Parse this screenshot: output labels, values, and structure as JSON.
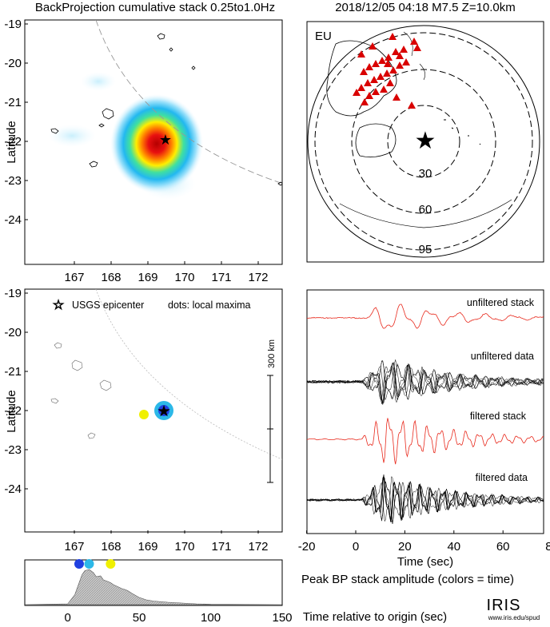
{
  "header": {
    "left_title": "BackProjection cumulative stack 0.25to1.0Hz",
    "right_title": "2018/12/05 04:18  M7.5  Z=10.0km"
  },
  "colors": {
    "stack_red": "#e8291c",
    "data_black": "#000000",
    "epicenter_blue": "#1b2bd6",
    "station_red": "#d90000",
    "dot_blue": "#2040e0",
    "dot_cyan": "#2cb8e8",
    "dot_yellow": "#f0f000"
  },
  "map_top": {
    "ylabel": "Latitude",
    "y_ticks": [
      "-19",
      "-20",
      "-21",
      "-22",
      "-23",
      "-24"
    ],
    "x_ticks": [
      "167",
      "168",
      "169",
      "170",
      "171",
      "172"
    ]
  },
  "globe": {
    "region_label": "EU",
    "ring_labels": [
      "30",
      "60",
      "95"
    ]
  },
  "map_bottom": {
    "ylabel": "Latitude",
    "y_ticks": [
      "-19",
      "-20",
      "-21",
      "-22",
      "-23",
      "-24"
    ],
    "x_ticks": [
      "167",
      "168",
      "169",
      "170",
      "171",
      "172"
    ],
    "legend_star": "USGS epicenter",
    "legend_dots": "dots: local maxima",
    "scale_label": "300 km"
  },
  "traces": {
    "labels": [
      "unfiltered stack",
      "unfiltered data",
      "filtered stack",
      "filtered data"
    ],
    "x_ticks": [
      "-20",
      "0",
      "20",
      "40",
      "60",
      "80"
    ],
    "xlabel": "Time (sec)"
  },
  "peak": {
    "x_ticks": [
      "0",
      "50",
      "100",
      "150"
    ],
    "title": "Peak BP stack amplitude (colors = time)",
    "xlabel": "Time relative to origin (sec)"
  },
  "logo": {
    "name": "IRIS",
    "url": "www.iris.edu/spud"
  },
  "chart_data": [
    {
      "type": "heatmap",
      "title": "BackProjection cumulative stack 0.25to1.0Hz",
      "xlabel": "",
      "ylabel": "Latitude",
      "xlim": [
        166.3,
        172.6
      ],
      "ylim": [
        -25.0,
        -18.9
      ],
      "peak": {
        "lon": 169.4,
        "lat": -21.97
      },
      "epicenter": {
        "lon": 169.43,
        "lat": -21.95
      }
    },
    {
      "type": "scatter",
      "title": "2018/12/05 04:18  M7.5  Z=10.0km",
      "region": "EU",
      "distance_rings_deg": [
        30,
        60,
        95
      ]
    },
    {
      "type": "scatter",
      "ylabel": "Latitude",
      "xlim": [
        166.3,
        172.6
      ],
      "ylim": [
        -25.0,
        -18.9
      ],
      "epicenter": {
        "lon": 169.43,
        "lat": -21.95
      },
      "local_maxima": [
        {
          "lon": 169.43,
          "lat": -21.97,
          "color": "cyan"
        },
        {
          "lon": 169.43,
          "lat": -21.97,
          "color": "blue"
        },
        {
          "lon": 168.93,
          "lat": -22.05,
          "color": "yellow"
        }
      ]
    },
    {
      "type": "line",
      "xlabel": "Time (sec)",
      "xlim": [
        -25,
        95
      ],
      "series": [
        {
          "name": "unfiltered stack"
        },
        {
          "name": "unfiltered data"
        },
        {
          "name": "filtered stack"
        },
        {
          "name": "filtered data"
        }
      ]
    },
    {
      "type": "area",
      "title": "Peak BP stack amplitude (colors = time)",
      "xlabel": "Time relative to origin (sec)",
      "xlim": [
        -30,
        150
      ],
      "x": [
        -30,
        0,
        5,
        8,
        10,
        12,
        15,
        18,
        20,
        23,
        25,
        28,
        30,
        32,
        35,
        38,
        40,
        42,
        45,
        48,
        50,
        55,
        60,
        70,
        80,
        90,
        100,
        150
      ],
      "values": [
        0.0,
        0.02,
        0.25,
        0.55,
        0.75,
        0.85,
        0.88,
        0.8,
        0.7,
        0.72,
        0.62,
        0.58,
        0.55,
        0.5,
        0.45,
        0.4,
        0.38,
        0.35,
        0.28,
        0.22,
        0.18,
        0.12,
        0.09,
        0.06,
        0.04,
        0.02,
        0.01,
        0.0
      ],
      "dots": [
        {
          "t": 8,
          "color": "blue"
        },
        {
          "t": 15,
          "color": "cyan"
        },
        {
          "t": 30,
          "color": "yellow"
        }
      ]
    }
  ]
}
